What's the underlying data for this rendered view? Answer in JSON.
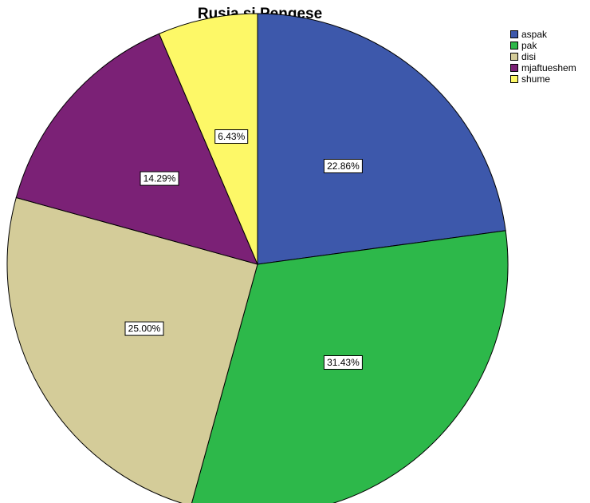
{
  "chart_data": {
    "type": "pie",
    "title": "Rusia si Pengese",
    "legend_position": "top-right",
    "categories": [
      "aspak",
      "pak",
      "disi",
      "mjaftueshem",
      "shume"
    ],
    "values": [
      22.86,
      31.43,
      25.0,
      14.29,
      6.43
    ],
    "labels": [
      "22.86%",
      "31.43%",
      "25.00%",
      "14.29%",
      "6.43%"
    ],
    "colors": [
      "#3d58ab",
      "#2db84a",
      "#d4cc99",
      "#7b2176",
      "#fdf867"
    ],
    "start_angle": "12 o'clock",
    "direction": "clockwise"
  }
}
